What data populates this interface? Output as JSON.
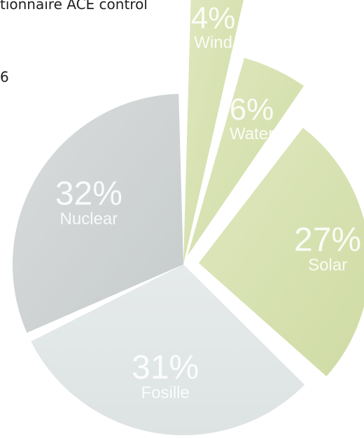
{
  "background_text": {
    "line1": "tionnaire ACE control",
    "line2": "6"
  },
  "chart_data": {
    "type": "pie",
    "title": "",
    "slices": [
      {
        "label": "Wind",
        "value": 4,
        "value_label": "4%",
        "color": "#dbe5b9"
      },
      {
        "label": "Water",
        "value": 6,
        "value_label": "6%",
        "color": "#d6e1b1"
      },
      {
        "label": "Solar",
        "value": 27,
        "value_label": "27%",
        "color": "#d3dfab"
      },
      {
        "label": "Fosille",
        "value": 31,
        "value_label": "31%",
        "color": "#e2e7e7"
      },
      {
        "label": "Nuclear",
        "value": 32,
        "value_label": "32%",
        "color": "#d0d4d4"
      }
    ],
    "legend": "none",
    "labels_inside_slices": true
  }
}
